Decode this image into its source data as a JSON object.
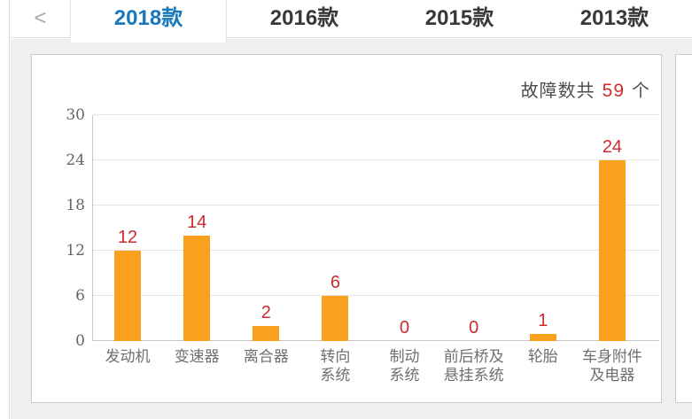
{
  "tabs": {
    "back_icon": "<",
    "items": [
      {
        "label": "2018款",
        "active": true
      },
      {
        "label": "2016款",
        "active": false
      },
      {
        "label": "2015款",
        "active": false
      },
      {
        "label": "2013款",
        "active": false
      }
    ]
  },
  "panel": {
    "title_prefix": "故障数共",
    "fault_count": "59",
    "title_suffix": "个"
  },
  "colors": {
    "accent_blue": "#1878bc",
    "count_red": "#d02c2c",
    "value_red": "#cc2b31",
    "bar_orange": "#f9a11d"
  },
  "chart_data": {
    "type": "bar",
    "title": "故障数共 59 个",
    "categories": [
      "发动机",
      "变速器",
      "离合器",
      "转向系统",
      "制动系统",
      "前后桥及悬挂系统",
      "轮胎",
      "车身附件及电器"
    ],
    "category_lines": [
      [
        "发动机"
      ],
      [
        "变速器"
      ],
      [
        "离合器"
      ],
      [
        "转向",
        "系统"
      ],
      [
        "制动",
        "系统"
      ],
      [
        "前后桥及",
        "悬挂系统"
      ],
      [
        "轮胎"
      ],
      [
        "车身附件",
        "及电器"
      ]
    ],
    "values": [
      12,
      14,
      2,
      6,
      0,
      0,
      1,
      24
    ],
    "total_faults": 59,
    "xlabel": "",
    "ylabel": "",
    "yticks": [
      0,
      6,
      12,
      18,
      24,
      30
    ],
    "ylim": [
      0,
      30
    ],
    "grid": true,
    "legend_position": "none"
  }
}
